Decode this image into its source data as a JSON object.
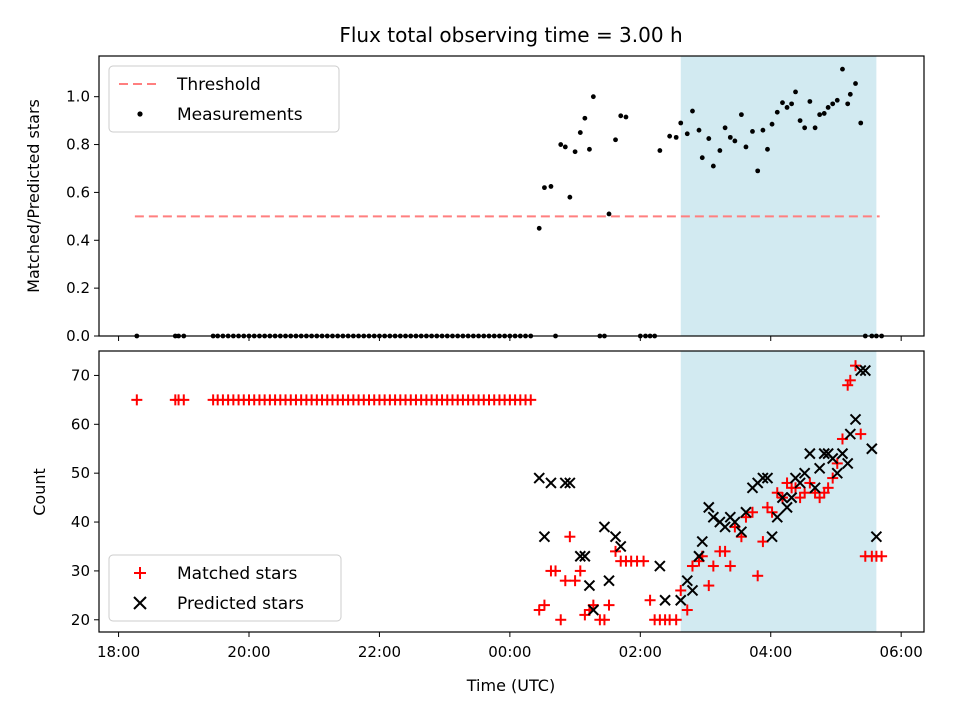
{
  "chart_data": [
    {
      "type": "scatter",
      "title": "Flux total observing time = 3.00 h",
      "ylabel": "Matched/Predicted stars",
      "xlabel": "",
      "ylim": [
        0,
        1.17
      ],
      "yticks": [
        0.0,
        0.2,
        0.4,
        0.6,
        0.8,
        1.0
      ],
      "ytick_labels": [
        "0.0",
        "0.2",
        "0.4",
        "0.6",
        "0.8",
        "1.0"
      ],
      "threshold": {
        "name": "Threshold",
        "y": 0.5,
        "x_range": [
          18.25,
          5.67
        ],
        "color": "#ff7f7f"
      },
      "shaded_region": {
        "x_start": 2.62,
        "x_end": 5.62,
        "color": "#add8e6"
      },
      "legend": {
        "placement": "upper-left",
        "entries": [
          "Threshold",
          "Measurements"
        ]
      },
      "series": [
        {
          "name": "Measurements",
          "color": "#000000",
          "x": [
            18.28,
            18.87,
            18.92,
            19.0,
            19.45,
            19.52,
            19.6,
            19.68,
            19.76,
            19.84,
            19.92,
            20.0,
            20.08,
            20.16,
            20.24,
            20.32,
            20.4,
            20.48,
            20.56,
            20.64,
            20.72,
            20.8,
            20.88,
            20.96,
            21.04,
            21.12,
            21.2,
            21.28,
            21.36,
            21.44,
            21.52,
            21.6,
            21.68,
            21.76,
            21.84,
            21.92,
            22.0,
            22.08,
            22.16,
            22.24,
            22.32,
            22.4,
            22.48,
            22.56,
            22.64,
            22.72,
            22.8,
            22.88,
            22.96,
            23.04,
            23.12,
            23.2,
            23.28,
            23.36,
            23.44,
            23.52,
            23.6,
            23.68,
            23.76,
            23.84,
            23.92,
            24.0,
            24.08,
            24.16,
            24.24,
            24.32,
            24.45,
            24.53,
            24.63,
            24.7,
            24.78,
            24.85,
            24.92,
            25.0,
            25.08,
            25.15,
            25.22,
            25.28,
            25.38,
            25.45,
            25.52,
            25.62,
            25.7,
            25.78,
            26.0,
            26.08,
            26.15,
            26.22,
            26.3,
            26.45,
            26.55,
            26.62,
            26.72,
            26.8,
            26.9,
            26.95,
            27.05,
            27.12,
            27.22,
            27.3,
            27.38,
            27.45,
            27.55,
            27.62,
            27.72,
            27.8,
            27.88,
            27.95,
            28.02,
            28.1,
            28.18,
            28.25,
            28.32,
            28.38,
            28.45,
            28.52,
            28.6,
            28.68,
            28.75,
            28.82,
            28.88,
            28.95,
            29.02,
            29.1,
            29.18,
            29.22,
            29.3,
            29.38,
            29.45,
            29.55,
            29.62,
            29.7
          ],
          "y": [
            0.0,
            0.0,
            0.0,
            0.0,
            0.0,
            0.0,
            0.0,
            0.0,
            0.0,
            0.0,
            0.0,
            0.0,
            0.0,
            0.0,
            0.0,
            0.0,
            0.0,
            0.0,
            0.0,
            0.0,
            0.0,
            0.0,
            0.0,
            0.0,
            0.0,
            0.0,
            0.0,
            0.0,
            0.0,
            0.0,
            0.0,
            0.0,
            0.0,
            0.0,
            0.0,
            0.0,
            0.0,
            0.0,
            0.0,
            0.0,
            0.0,
            0.0,
            0.0,
            0.0,
            0.0,
            0.0,
            0.0,
            0.0,
            0.0,
            0.0,
            0.0,
            0.0,
            0.0,
            0.0,
            0.0,
            0.0,
            0.0,
            0.0,
            0.0,
            0.0,
            0.0,
            0.0,
            0.0,
            0.0,
            0.0,
            0.0,
            0.45,
            0.62,
            0.625,
            0.0,
            0.8,
            0.79,
            0.58,
            0.77,
            0.85,
            0.91,
            0.78,
            1.0,
            0.0,
            0.0,
            0.51,
            0.82,
            0.92,
            0.915,
            0.0,
            0.0,
            0.0,
            0.0,
            0.775,
            0.835,
            0.83,
            0.89,
            0.845,
            0.94,
            0.86,
            0.745,
            0.825,
            0.71,
            0.775,
            0.87,
            0.83,
            0.815,
            0.925,
            0.79,
            0.855,
            0.69,
            0.86,
            0.78,
            0.885,
            0.935,
            0.975,
            0.955,
            0.97,
            1.02,
            0.9,
            0.87,
            0.98,
            0.87,
            0.925,
            0.93,
            0.955,
            0.97,
            0.985,
            1.115,
            0.97,
            1.01,
            1.055,
            0.89,
            0.0,
            0.0,
            0.0,
            0.0
          ]
        }
      ]
    },
    {
      "type": "scatter",
      "title": "",
      "xlabel": "Time (UTC)",
      "ylabel": "Count",
      "xlim": [
        17.7,
        30.35
      ],
      "xticks": [
        18,
        20,
        22,
        24,
        26,
        28,
        30
      ],
      "xtick_labels": [
        "18:00",
        "20:00",
        "22:00",
        "00:00",
        "02:00",
        "04:00",
        "06:00"
      ],
      "ylim": [
        17.5,
        75
      ],
      "yticks": [
        20,
        30,
        40,
        50,
        60,
        70
      ],
      "ytick_labels": [
        "20",
        "30",
        "40",
        "50",
        "60",
        "70"
      ],
      "shaded_region": {
        "x_start": 2.62,
        "x_end": 5.62,
        "color": "#add8e6"
      },
      "legend": {
        "placement": "lower-left",
        "entries": [
          "Matched stars",
          "Predicted stars"
        ]
      },
      "series": [
        {
          "name": "Matched stars",
          "marker": "plus",
          "color": "#ff0000",
          "x": [
            18.28,
            18.87,
            18.92,
            19.0,
            19.45,
            19.52,
            19.6,
            19.68,
            19.76,
            19.84,
            19.92,
            20.0,
            20.08,
            20.16,
            20.24,
            20.32,
            20.4,
            20.48,
            20.56,
            20.64,
            20.72,
            20.8,
            20.88,
            20.96,
            21.04,
            21.12,
            21.2,
            21.28,
            21.36,
            21.44,
            21.52,
            21.6,
            21.68,
            21.76,
            21.84,
            21.92,
            22.0,
            22.08,
            22.16,
            22.24,
            22.32,
            22.4,
            22.48,
            22.56,
            22.64,
            22.72,
            22.8,
            22.88,
            22.96,
            23.04,
            23.12,
            23.2,
            23.28,
            23.36,
            23.44,
            23.52,
            23.6,
            23.68,
            23.76,
            23.84,
            23.92,
            24.0,
            24.08,
            24.16,
            24.24,
            24.32,
            24.45,
            24.53,
            24.63,
            24.7,
            24.78,
            24.85,
            24.92,
            25.0,
            25.08,
            25.15,
            25.22,
            25.28,
            25.38,
            25.45,
            25.52,
            25.62,
            25.7,
            25.78,
            25.86,
            25.95,
            26.05,
            26.15,
            26.22,
            26.3,
            26.38,
            26.45,
            26.55,
            26.62,
            26.72,
            26.8,
            26.9,
            26.95,
            27.05,
            27.12,
            27.22,
            27.3,
            27.38,
            27.45,
            27.55,
            27.62,
            27.72,
            27.8,
            27.88,
            27.95,
            28.02,
            28.1,
            28.18,
            28.25,
            28.32,
            28.38,
            28.45,
            28.52,
            28.6,
            28.68,
            28.75,
            28.82,
            28.88,
            28.95,
            29.02,
            29.1,
            29.18,
            29.22,
            29.3,
            29.38,
            29.45,
            29.55,
            29.62,
            29.7
          ],
          "y": [
            65,
            65,
            65,
            65,
            65,
            65,
            65,
            65,
            65,
            65,
            65,
            65,
            65,
            65,
            65,
            65,
            65,
            65,
            65,
            65,
            65,
            65,
            65,
            65,
            65,
            65,
            65,
            65,
            65,
            65,
            65,
            65,
            65,
            65,
            65,
            65,
            65,
            65,
            65,
            65,
            65,
            65,
            65,
            65,
            65,
            65,
            65,
            65,
            65,
            65,
            65,
            65,
            65,
            65,
            65,
            65,
            65,
            65,
            65,
            65,
            65,
            65,
            65,
            65,
            65,
            65,
            22,
            23,
            30,
            30,
            20,
            28,
            37,
            28,
            30,
            21,
            22,
            23,
            20,
            20,
            23,
            34,
            32,
            32,
            32,
            32,
            32,
            24,
            20,
            20,
            20,
            20,
            20,
            26,
            22,
            31,
            32,
            33,
            27,
            31,
            34,
            34,
            31,
            39,
            37,
            41,
            42,
            29,
            36,
            43,
            42,
            46,
            45,
            48,
            47,
            47,
            45,
            46,
            48,
            46,
            45,
            46,
            47,
            49,
            52,
            57,
            68,
            69,
            72,
            58,
            33,
            33,
            33,
            33
          ]
        },
        {
          "name": "Predicted stars",
          "marker": "x",
          "color": "#000000",
          "x": [
            24.45,
            24.53,
            24.63,
            24.85,
            24.92,
            25.08,
            25.15,
            25.22,
            25.28,
            25.45,
            25.52,
            25.62,
            25.7,
            26.3,
            26.38,
            26.62,
            26.72,
            26.8,
            26.9,
            26.95,
            27.05,
            27.12,
            27.22,
            27.3,
            27.38,
            27.45,
            27.55,
            27.62,
            27.72,
            27.8,
            27.88,
            27.95,
            28.02,
            28.1,
            28.18,
            28.25,
            28.32,
            28.38,
            28.45,
            28.52,
            28.6,
            28.68,
            28.75,
            28.82,
            28.88,
            28.95,
            29.02,
            29.1,
            29.18,
            29.22,
            29.3,
            29.38,
            29.45,
            29.55,
            29.62
          ],
          "y": [
            49,
            37,
            48,
            48,
            48,
            33,
            33,
            27,
            22,
            39,
            28,
            37,
            35,
            31,
            24,
            24,
            28,
            26,
            33,
            36,
            43,
            41,
            40,
            39,
            41,
            40,
            38,
            42,
            47,
            48,
            49,
            49,
            37,
            41,
            45,
            43,
            45,
            49,
            48,
            50,
            54,
            47,
            51,
            54,
            54,
            53,
            50,
            54,
            52,
            58,
            61,
            71,
            71,
            55,
            37
          ]
        }
      ]
    }
  ]
}
